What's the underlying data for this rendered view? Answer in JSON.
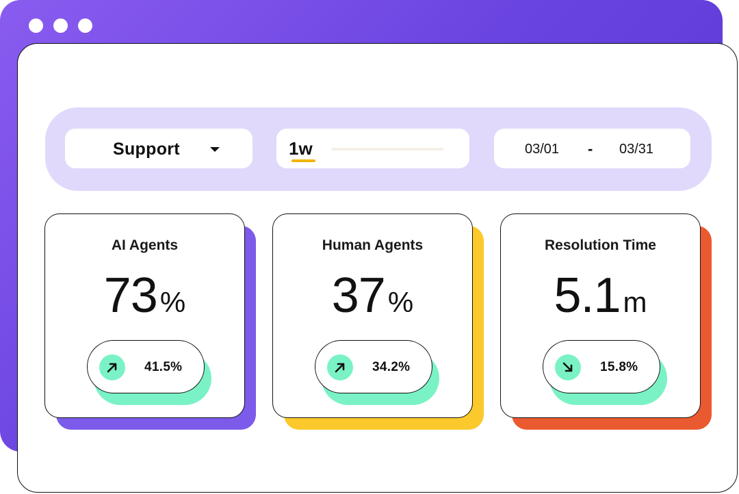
{
  "window": {
    "controls": [
      "close",
      "minimize",
      "maximize"
    ]
  },
  "filters": {
    "team_dropdown": {
      "value": "Support",
      "icon": "caret-down-icon"
    },
    "time_range": {
      "selected": "1w"
    },
    "date_range": {
      "start": "03/01",
      "separator": "-",
      "end": "03/31"
    }
  },
  "cards": [
    {
      "title": "AI Agents",
      "value": "73",
      "unit": "%",
      "change": "41.5%",
      "trend": "up",
      "accent": "#7c5bea"
    },
    {
      "title": "Human Agents",
      "value": "37",
      "unit": "%",
      "change": "34.2%",
      "trend": "up",
      "accent": "#fcc92c"
    },
    {
      "title": "Resolution Time",
      "value": "5.1",
      "unit": "m",
      "change": "15.8%",
      "trend": "down",
      "accent": "#ea5a30"
    }
  ],
  "colors": {
    "window_gradient": "#6a44e0",
    "filter_bar": "#e0d9fb",
    "trend_badge": "#7af2c5",
    "range_underline": "#f4b400"
  }
}
